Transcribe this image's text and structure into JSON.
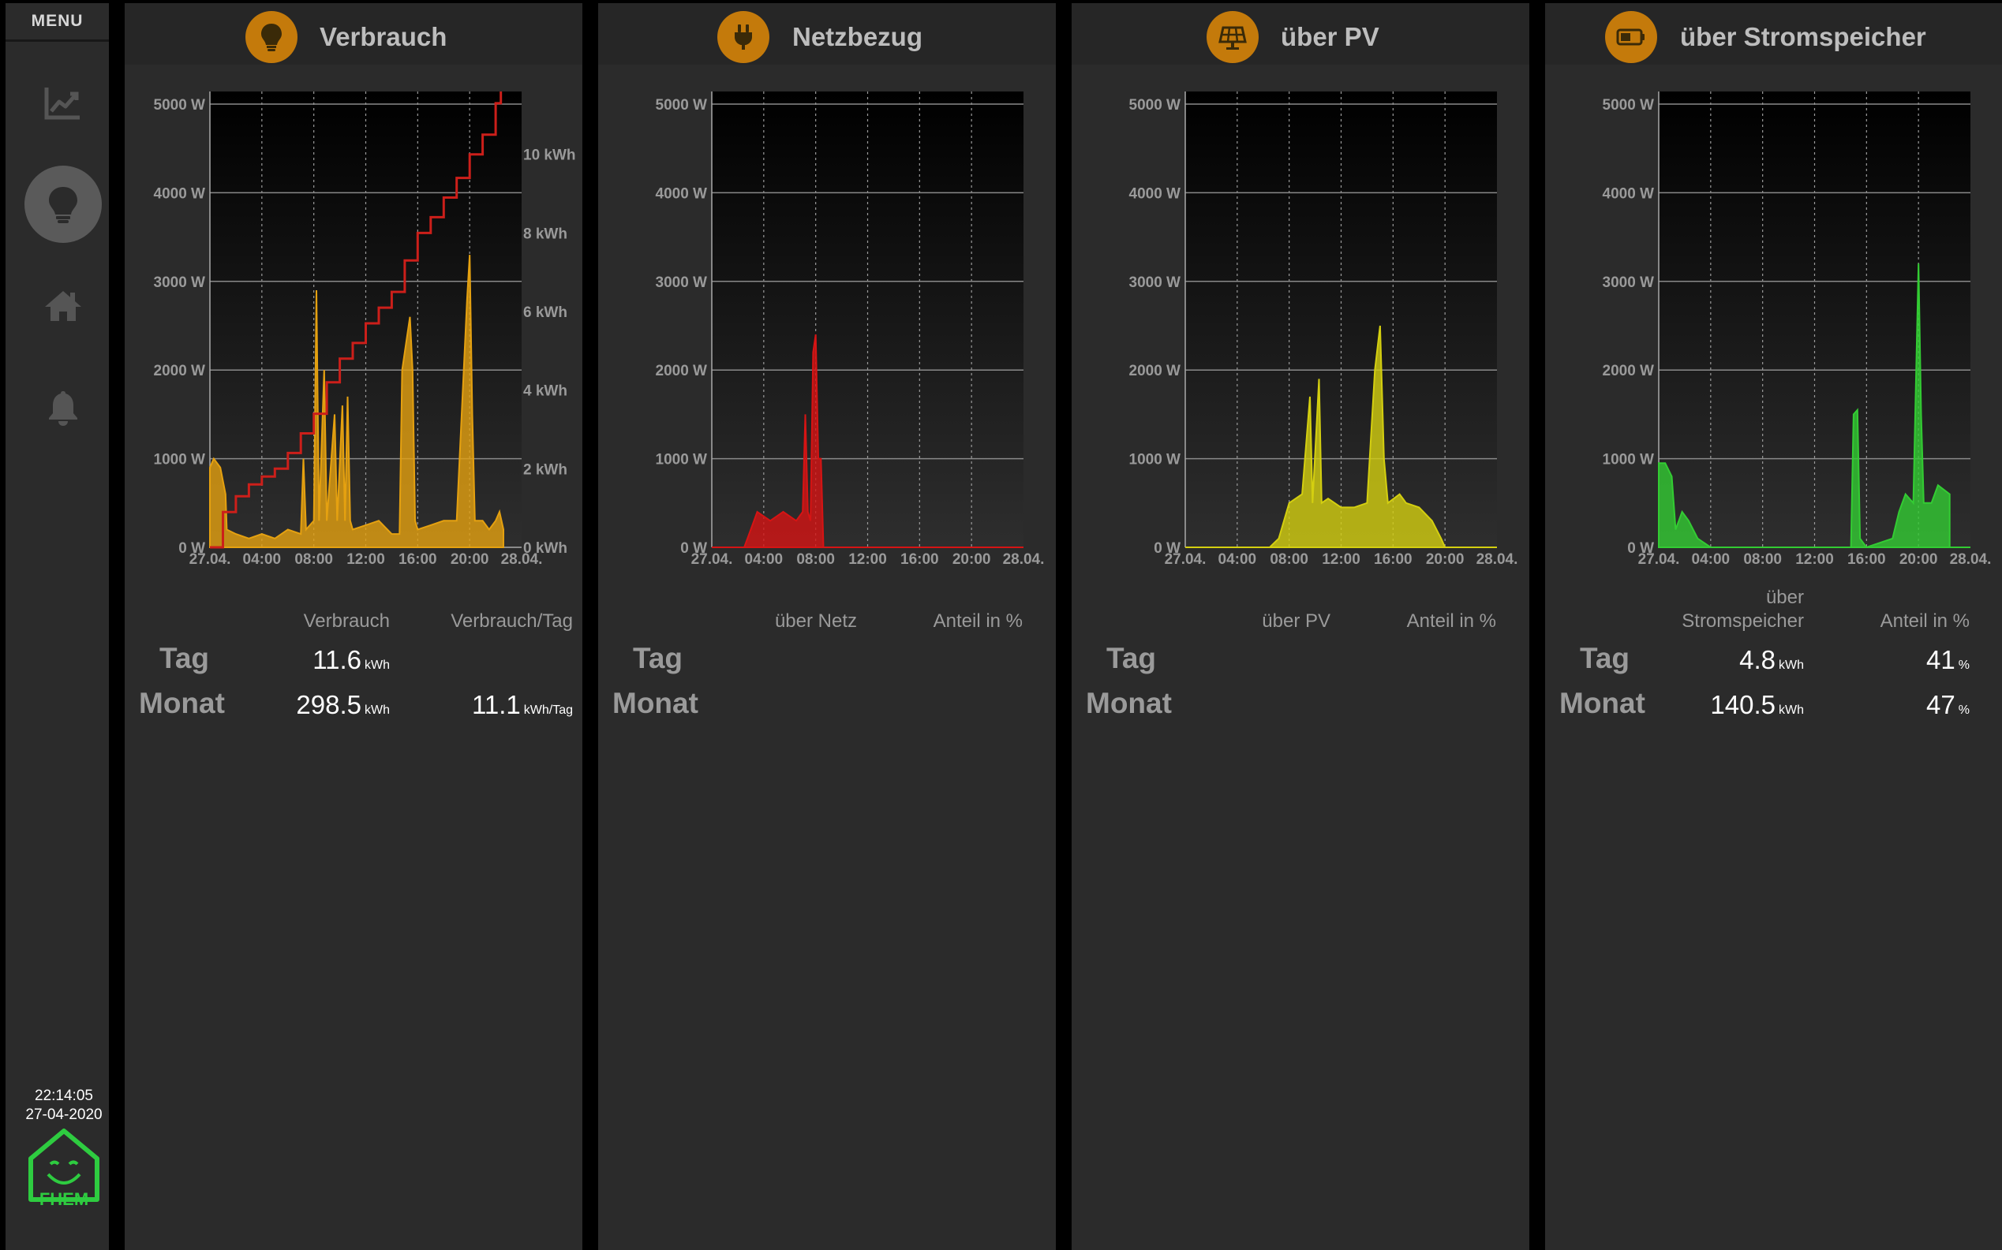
{
  "sidebar": {
    "menu_label": "MENU",
    "nav": [
      {
        "icon": "chart-line-icon"
      },
      {
        "icon": "lightbulb-icon",
        "active": true
      },
      {
        "icon": "home-icon"
      },
      {
        "icon": "bell-icon"
      }
    ],
    "clock_time": "22:14:05",
    "clock_date": "27-04-2020",
    "logo_text": "FHEM"
  },
  "colors": {
    "accent_orange": "#c47a0b",
    "verbrauch": "#e5a110",
    "verbrauch_cumulative": "#cc1f1a",
    "netzbezug": "#d61414",
    "pv": "#d4cf10",
    "speicher": "#33cc33"
  },
  "panels": [
    {
      "title": "Verbrauch",
      "icon": "lightbulb-icon",
      "col1_header": "Verbrauch",
      "col2_header": "Verbrauch/Tag",
      "tag_label": "Tag",
      "monat_label": "Monat",
      "tag_val1": "11.6",
      "tag_unit1": "kWh",
      "monat_val1": "298.5",
      "monat_unit1": "kWh",
      "monat_val2": "11.1",
      "monat_unit2": "kWh/Tag"
    },
    {
      "title": "Netzbezug",
      "icon": "plug-icon",
      "col1_header": "über Netz",
      "col2_header": "Anteil in %",
      "tag_label": "Tag",
      "monat_label": "Monat"
    },
    {
      "title": "über PV",
      "icon": "solar-panel-icon",
      "col1_header": "über PV",
      "col2_header": "Anteil in %",
      "tag_label": "Tag",
      "monat_label": "Monat"
    },
    {
      "title": "über Stromspeicher",
      "icon": "battery-icon",
      "col1_header_line1": "über",
      "col1_header_line2": "Stromspeicher",
      "col2_header": "Anteil in %",
      "tag_label": "Tag",
      "monat_label": "Monat",
      "tag_val1": "4.8",
      "tag_unit1": "kWh",
      "tag_val2": "41",
      "tag_unit2": "%",
      "monat_val1": "140.5",
      "monat_unit1": "kWh",
      "monat_val2": "47",
      "monat_unit2": "%"
    }
  ],
  "chart_data": [
    {
      "type": "area",
      "title": "Verbrauch",
      "y_unit": "W",
      "ylim": [
        0,
        5000
      ],
      "yticks": [
        "0 W",
        "1000 W",
        "2000 W",
        "3000 W",
        "4000 W",
        "5000 W"
      ],
      "xticks": [
        "27.04.",
        "04:00",
        "08:00",
        "12:00",
        "16:00",
        "20:00",
        "28.04."
      ],
      "xlim_hours": [
        0,
        24
      ],
      "grid": true,
      "series": [
        {
          "values_hours_w": [
            [
              0,
              900
            ],
            [
              0.3,
              1000
            ],
            [
              0.8,
              900
            ],
            [
              1.2,
              600
            ],
            [
              1.3,
              200
            ],
            [
              2,
              150
            ],
            [
              3,
              100
            ],
            [
              4,
              150
            ],
            [
              5,
              100
            ],
            [
              6,
              200
            ],
            [
              7,
              150
            ],
            [
              7.2,
              1000
            ],
            [
              7.4,
              200
            ],
            [
              8,
              300
            ],
            [
              8.2,
              2900
            ],
            [
              8.4,
              300
            ],
            [
              8.8,
              2000
            ],
            [
              9,
              300
            ],
            [
              9.6,
              1500
            ],
            [
              9.8,
              300
            ],
            [
              10.2,
              1600
            ],
            [
              10.4,
              300
            ],
            [
              10.6,
              1700
            ],
            [
              10.8,
              300
            ],
            [
              11,
              200
            ],
            [
              12,
              250
            ],
            [
              13,
              300
            ],
            [
              14,
              150
            ],
            [
              14.6,
              150
            ],
            [
              14.8,
              2000
            ],
            [
              15.2,
              2400
            ],
            [
              15.4,
              2600
            ],
            [
              15.6,
              2000
            ],
            [
              15.8,
              300
            ],
            [
              16,
              200
            ],
            [
              17,
              250
            ],
            [
              18,
              300
            ],
            [
              19,
              300
            ],
            [
              19.8,
              2800
            ],
            [
              20,
              3300
            ],
            [
              20.2,
              1500
            ],
            [
              20.4,
              300
            ],
            [
              21,
              300
            ],
            [
              21.5,
              200
            ],
            [
              22,
              300
            ],
            [
              22.3,
              400
            ],
            [
              22.6,
              200
            ]
          ]
        }
      ],
      "secondary_axis": {
        "unit": "kWh",
        "ylim": [
          0,
          11.6
        ],
        "yticks": [
          "0 kWh",
          "2 kWh",
          "4 kWh",
          "6 kWh",
          "8 kWh",
          "10 kWh"
        ],
        "values_hours_kwh": [
          [
            0,
            0
          ],
          [
            0.8,
            0
          ],
          [
            1,
            0.9
          ],
          [
            2,
            1.3
          ],
          [
            3,
            1.6
          ],
          [
            4,
            1.8
          ],
          [
            5,
            2.0
          ],
          [
            6,
            2.4
          ],
          [
            7,
            2.9
          ],
          [
            8,
            3.4
          ],
          [
            9,
            4.2
          ],
          [
            10,
            4.8
          ],
          [
            11,
            5.2
          ],
          [
            12,
            5.7
          ],
          [
            13,
            6.1
          ],
          [
            14,
            6.5
          ],
          [
            15,
            7.3
          ],
          [
            16,
            8.0
          ],
          [
            17,
            8.4
          ],
          [
            18,
            8.9
          ],
          [
            19,
            9.4
          ],
          [
            20,
            10.0
          ],
          [
            21,
            10.5
          ],
          [
            22,
            11.3
          ],
          [
            22.4,
            11.6
          ]
        ]
      }
    },
    {
      "type": "area",
      "title": "Netzbezug",
      "y_unit": "W",
      "ylim": [
        0,
        5000
      ],
      "yticks": [
        "0 W",
        "1000 W",
        "2000 W",
        "3000 W",
        "4000 W",
        "5000 W"
      ],
      "xticks": [
        "27.04.",
        "04:00",
        "08:00",
        "12:00",
        "16:00",
        "20:00",
        "28.04."
      ],
      "xlim_hours": [
        0,
        24
      ],
      "grid": true,
      "series": [
        {
          "values_hours_w": [
            [
              0,
              0
            ],
            [
              2.5,
              0
            ],
            [
              3,
              200
            ],
            [
              3.5,
              400
            ],
            [
              4.5,
              300
            ],
            [
              5.5,
              400
            ],
            [
              6.5,
              300
            ],
            [
              7,
              400
            ],
            [
              7.2,
              1500
            ],
            [
              7.4,
              400
            ],
            [
              7.6,
              300
            ],
            [
              7.8,
              2200
            ],
            [
              8,
              2400
            ],
            [
              8.2,
              1000
            ],
            [
              8.4,
              1000
            ],
            [
              8.6,
              0
            ],
            [
              24,
              0
            ]
          ]
        }
      ]
    },
    {
      "type": "area",
      "title": "über PV",
      "y_unit": "W",
      "ylim": [
        0,
        5000
      ],
      "yticks": [
        "0 W",
        "1000 W",
        "2000 W",
        "3000 W",
        "4000 W",
        "5000 W"
      ],
      "xticks": [
        "27.04.",
        "04:00",
        "08:00",
        "12:00",
        "16:00",
        "20:00",
        "28.04."
      ],
      "xlim_hours": [
        0,
        24
      ],
      "grid": true,
      "series": [
        {
          "values_hours_w": [
            [
              0,
              0
            ],
            [
              6.5,
              0
            ],
            [
              7.2,
              100
            ],
            [
              7.6,
              300
            ],
            [
              8,
              500
            ],
            [
              9,
              600
            ],
            [
              9.6,
              1700
            ],
            [
              9.8,
              500
            ],
            [
              10.3,
              1900
            ],
            [
              10.5,
              500
            ],
            [
              11,
              550
            ],
            [
              12,
              450
            ],
            [
              13,
              450
            ],
            [
              14,
              500
            ],
            [
              14.6,
              2000
            ],
            [
              15,
              2500
            ],
            [
              15.3,
              1000
            ],
            [
              15.6,
              500
            ],
            [
              16.5,
              600
            ],
            [
              17,
              500
            ],
            [
              18,
              450
            ],
            [
              19,
              300
            ],
            [
              19.7,
              100
            ],
            [
              20,
              0
            ],
            [
              24,
              0
            ]
          ]
        }
      ]
    },
    {
      "type": "area",
      "title": "über Stromspeicher",
      "y_unit": "W",
      "ylim": [
        0,
        5000
      ],
      "yticks": [
        "0 W",
        "1000 W",
        "2000 W",
        "3000 W",
        "4000 W",
        "5000 W"
      ],
      "xticks": [
        "27.04.",
        "04:00",
        "08:00",
        "12:00",
        "16:00",
        "20:00",
        "28.04."
      ],
      "xlim_hours": [
        0,
        24
      ],
      "grid": true,
      "series": [
        {
          "values_hours_w": [
            [
              0,
              950
            ],
            [
              0.5,
              950
            ],
            [
              1,
              800
            ],
            [
              1.3,
              200
            ],
            [
              1.8,
              400
            ],
            [
              2.3,
              300
            ],
            [
              3,
              100
            ],
            [
              4,
              0
            ],
            [
              14.8,
              0
            ],
            [
              15,
              1500
            ],
            [
              15.3,
              1550
            ],
            [
              15.5,
              100
            ],
            [
              16,
              0
            ],
            [
              18,
              100
            ],
            [
              18.5,
              400
            ],
            [
              19,
              600
            ],
            [
              19.6,
              500
            ],
            [
              20,
              3200
            ],
            [
              20.2,
              1500
            ],
            [
              20.4,
              500
            ],
            [
              21,
              500
            ],
            [
              21.5,
              700
            ],
            [
              22.4,
              600
            ],
            [
              22.4,
              0
            ],
            [
              24,
              0
            ]
          ]
        }
      ]
    }
  ]
}
